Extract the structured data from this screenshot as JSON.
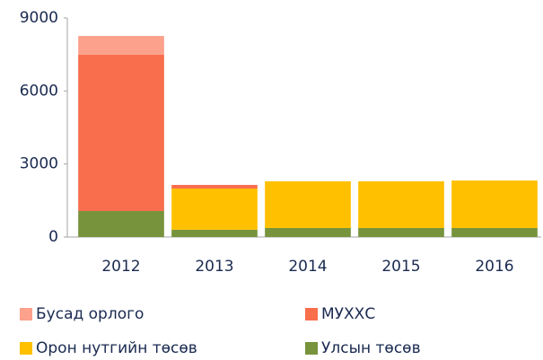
{
  "chart_data": {
    "type": "stacked_bar",
    "categories": [
      "2012",
      "2013",
      "2014",
      "2015",
      "2016"
    ],
    "series": [
      {
        "name": "Улсын төсөв",
        "color": "#77933c",
        "values": [
          1070,
          300,
          370,
          370,
          370
        ]
      },
      {
        "name": "Орон нутгийн төсөв",
        "color": "#ffc000",
        "values": [
          0,
          1690,
          1920,
          1920,
          1950
        ]
      },
      {
        "name": "МУХХС",
        "color": "#f96e4d",
        "values": [
          6420,
          150,
          0,
          0,
          0
        ]
      },
      {
        "name": "Бусад орлого",
        "color": "#fba18c",
        "values": [
          770,
          0,
          0,
          0,
          0
        ]
      }
    ],
    "legend_order": [
      3,
      2,
      1,
      0
    ],
    "ylim": [
      0,
      9000
    ],
    "yticks": [
      0,
      3000,
      6000,
      9000
    ],
    "grid": false
  }
}
